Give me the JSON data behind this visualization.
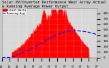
{
  "title": "Solar PV/Inverter Performance West Array Actual & Running Average Power Output",
  "bg_color": "#c8c8c8",
  "plot_bg_color": "#d8d8d8",
  "grid_color": "#ffffff",
  "bar_color": "#ff0000",
  "avg_color": "#0000ee",
  "n_points": 288,
  "ymax": 900,
  "yticks": [
    0,
    100,
    200,
    300,
    400,
    500,
    600,
    700,
    800
  ],
  "legend_actual": "Actual Watts",
  "legend_avg": "Running Avg",
  "title_fontsize": 4.0,
  "tick_fontsize": 3.5,
  "legend_fontsize": 2.8
}
